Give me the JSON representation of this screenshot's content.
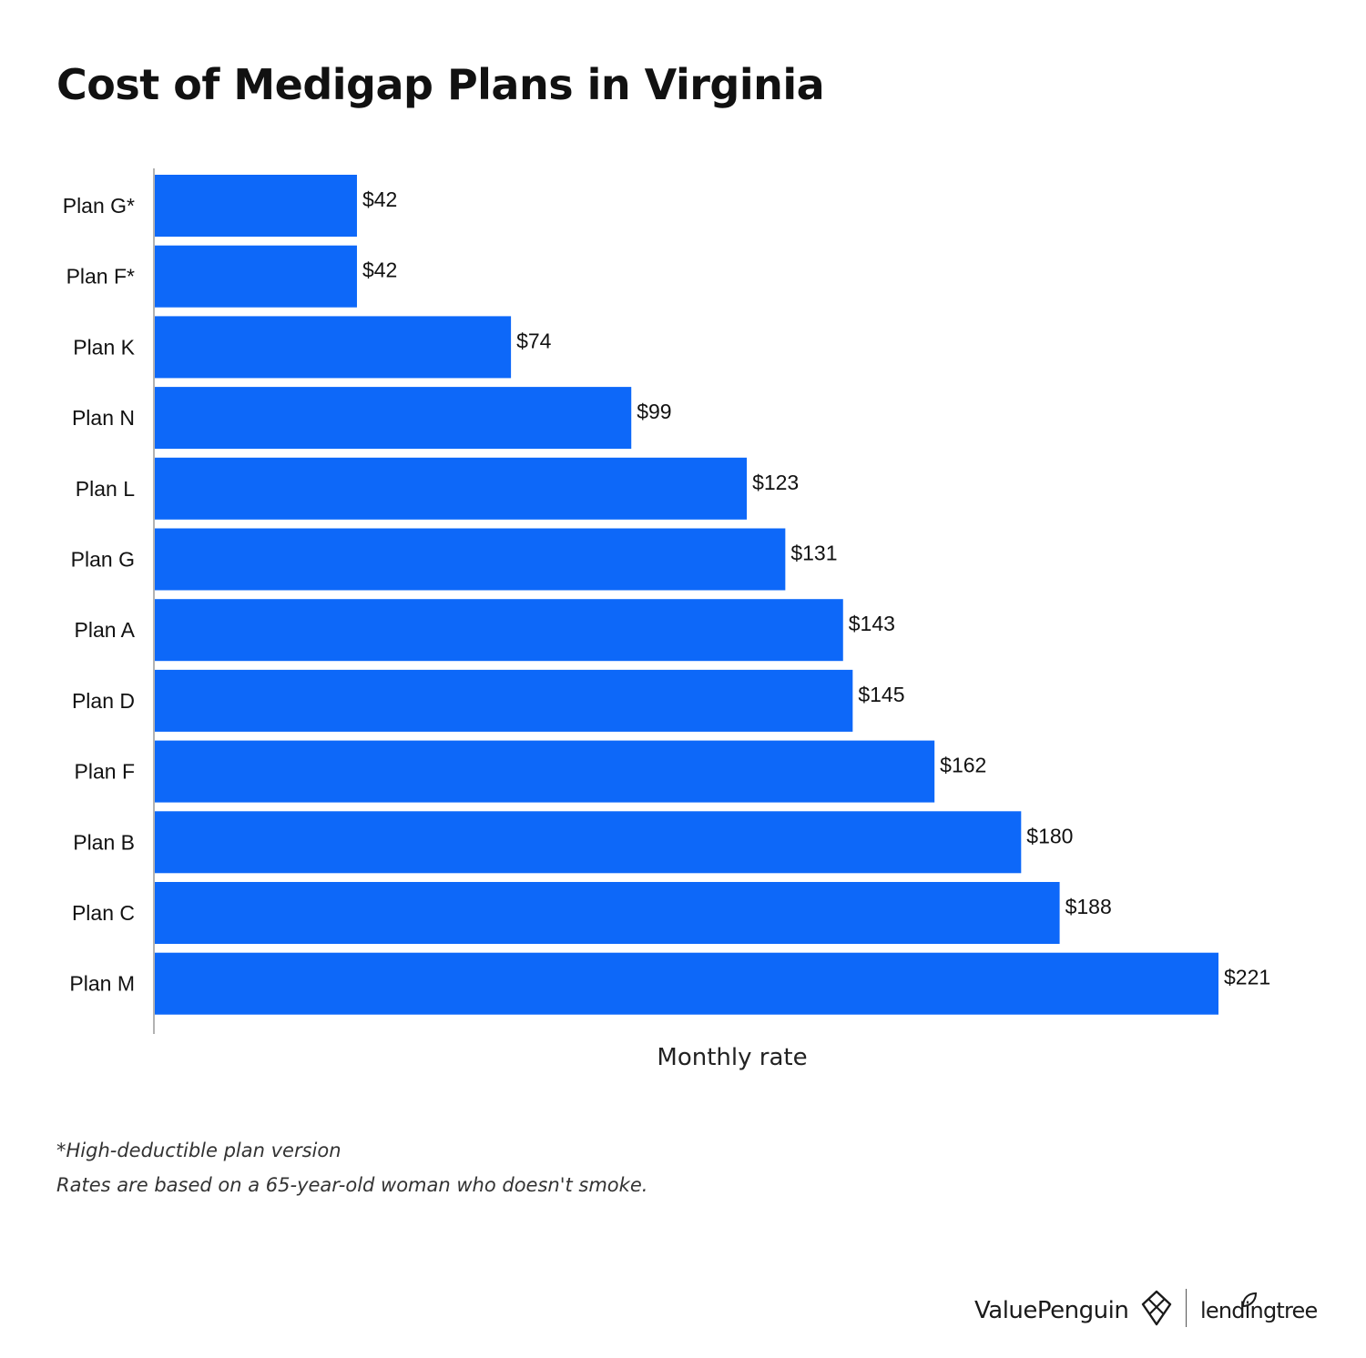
{
  "chart_data": {
    "type": "bar",
    "orientation": "horizontal",
    "title": "Cost of Medigap Plans in Virginia",
    "xlabel": "Monthly rate",
    "ylabel": "",
    "categories": [
      "Plan G*",
      "Plan F*",
      "Plan K",
      "Plan N",
      "Plan L",
      "Plan G",
      "Plan A",
      "Plan D",
      "Plan F",
      "Plan B",
      "Plan C",
      "Plan M"
    ],
    "values": [
      42,
      42,
      74,
      99,
      123,
      131,
      143,
      145,
      162,
      180,
      188,
      221
    ],
    "value_labels": [
      "$42",
      "$42",
      "$74",
      "$99",
      "$123",
      "$131",
      "$143",
      "$145",
      "$162",
      "$180",
      "$188",
      "$221"
    ],
    "xlim": [
      0,
      221
    ],
    "grid": false,
    "legend": "none",
    "bar_color": "#0d68f9"
  },
  "footnotes": {
    "line1": "*High-deductible plan version",
    "line2": "Rates are based on a 65-year-old woman who doesn't smoke."
  },
  "branding": {
    "valuepenguin": "ValuePenguin",
    "valuepenguin_icon": "penguin-logo-icon",
    "lendingtree": "lendingtree",
    "lendingtree_icon": "leaf-logo-icon"
  }
}
